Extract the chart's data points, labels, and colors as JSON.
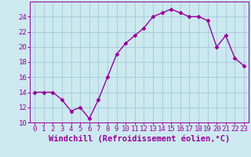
{
  "x": [
    0,
    1,
    2,
    3,
    4,
    5,
    6,
    7,
    8,
    9,
    10,
    11,
    12,
    13,
    14,
    15,
    16,
    17,
    18,
    19,
    20,
    21,
    22,
    23
  ],
  "y": [
    14,
    14,
    14,
    13,
    11.5,
    12,
    10.5,
    13,
    16,
    19,
    20.5,
    21.5,
    22.5,
    24,
    24.5,
    25,
    24.5,
    24,
    24,
    23.5,
    20,
    21.5,
    18.5,
    17.5
  ],
  "line_color": "#990099",
  "marker": "D",
  "markersize": 2.5,
  "linewidth": 1.0,
  "xlabel": "Windchill (Refroidissement éolien,°C)",
  "xlim": [
    -0.5,
    23.5
  ],
  "ylim": [
    10,
    26
  ],
  "yticks": [
    10,
    12,
    14,
    16,
    18,
    20,
    22,
    24
  ],
  "xticks": [
    0,
    1,
    2,
    3,
    4,
    5,
    6,
    7,
    8,
    9,
    10,
    11,
    12,
    13,
    14,
    15,
    16,
    17,
    18,
    19,
    20,
    21,
    22,
    23
  ],
  "bg_color": "#cce9f0",
  "grid_color": "#aaccdd",
  "tick_color": "#990099",
  "label_color": "#990099",
  "xlabel_fontsize": 7.5,
  "tick_fontsize": 6.5,
  "fig_width": 3.2,
  "fig_height": 2.0,
  "dpi": 100
}
